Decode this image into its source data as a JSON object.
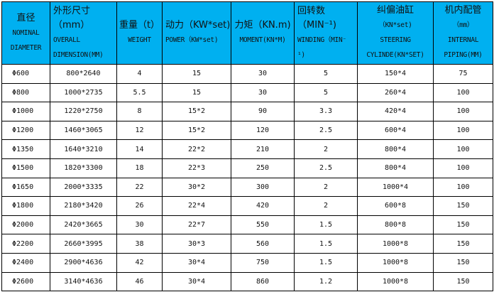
{
  "header_color": "#00B0F0",
  "columns": [
    {
      "cn": "直径",
      "en": [
        "NOMINAL",
        "DIAMETER"
      ]
    },
    {
      "cn": "外形尺寸（mm）",
      "en": [
        "OVERALL",
        "DIMENSION(MM)"
      ]
    },
    {
      "cn": "重量（t）",
      "en": [
        "WEIGHT"
      ]
    },
    {
      "cn": "动力（KW*set)",
      "en": [
        "POWER（KW*set)"
      ]
    },
    {
      "cn": "力矩（KN.m)",
      "en": [
        "MOMENT(KN*M)"
      ]
    },
    {
      "cn": "回转数（MIN⁻¹)",
      "en": [
        "WINDING（MIN⁻",
        "¹)"
      ]
    },
    {
      "cn": "纠偏油缸",
      "en": [
        "（KN*set)",
        "STEERING",
        "CYLINDE(KN*SET)"
      ]
    },
    {
      "cn": "机内配管",
      "en": [
        "（mm）",
        "INTERNAL",
        "PIPING(MM)"
      ]
    }
  ],
  "rows": [
    [
      "Φ600",
      "800*2640",
      "4",
      "15",
      "30",
      "5",
      "150*4",
      "75"
    ],
    [
      "Φ800",
      "1000*2735",
      "5.5",
      "15",
      "30",
      "5",
      "260*4",
      "100"
    ],
    [
      "Φ1000",
      "1220*2750",
      "8",
      "15*2",
      "90",
      "3.3",
      "420*4",
      "100"
    ],
    [
      "Φ1200",
      "1460*3065",
      "12",
      "15*2",
      "120",
      "2.5",
      "600*4",
      "100"
    ],
    [
      "Φ1350",
      "1640*3210",
      "14",
      "22*2",
      "210",
      "2",
      "800*4",
      "100"
    ],
    [
      "Φ1500",
      "1820*3300",
      "18",
      "22*3",
      "250",
      "2.5",
      "800*4",
      "100"
    ],
    [
      "Φ1650",
      "2000*3335",
      "22",
      "30*2",
      "300",
      "2",
      "1000*4",
      "100"
    ],
    [
      "Φ1800",
      "2180*3420",
      "26",
      "22*4",
      "420",
      "2",
      "600*8",
      "150"
    ],
    [
      "Φ2000",
      "2420*3665",
      "30",
      "22*7",
      "550",
      "1.5",
      "800*8",
      "150"
    ],
    [
      "Φ2200",
      "2660*3995",
      "38",
      "30*3",
      "560",
      "1.5",
      "1000*8",
      "150"
    ],
    [
      "Φ2400",
      "2900*4636",
      "42",
      "30*4",
      "750",
      "1.5",
      "1000*8",
      "150"
    ],
    [
      "Φ2600",
      "3140*4636",
      "46",
      "30*4",
      "860",
      "1.2",
      "1000*8",
      "150"
    ]
  ]
}
